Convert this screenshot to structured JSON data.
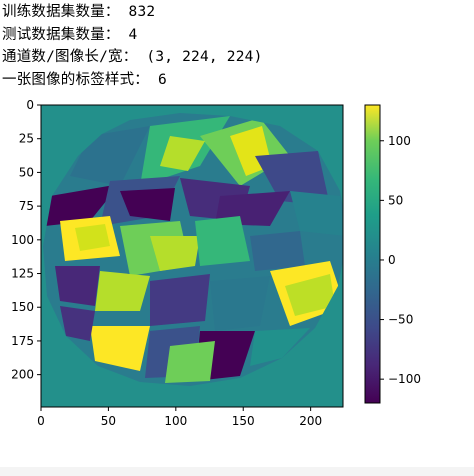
{
  "output": {
    "lines": [
      {
        "label": "训练数据集数量：",
        "value": "832"
      },
      {
        "label": "测试数据集数量：",
        "value": "4"
      },
      {
        "label": "通道数/图像长/宽：",
        "value": "(3, 224, 224)"
      },
      {
        "label": "一张图像的标签样式：",
        "value": "6"
      }
    ]
  },
  "chart_data": {
    "type": "heatmap",
    "description_free": true,
    "x_ticks": [
      0,
      50,
      100,
      150,
      200
    ],
    "y_ticks": [
      0,
      25,
      50,
      75,
      100,
      125,
      150,
      175,
      200
    ],
    "x_range": [
      0,
      224
    ],
    "y_range": [
      224,
      0
    ],
    "colorbar_ticks": [
      100,
      50,
      0,
      -50,
      -100
    ],
    "colorbar_range": [
      -120,
      130
    ],
    "colormap": "viridis",
    "colors": {
      "viridis_low": "#440154",
      "viridis_mid": "#21918c",
      "viridis_high": "#fde725"
    }
  }
}
